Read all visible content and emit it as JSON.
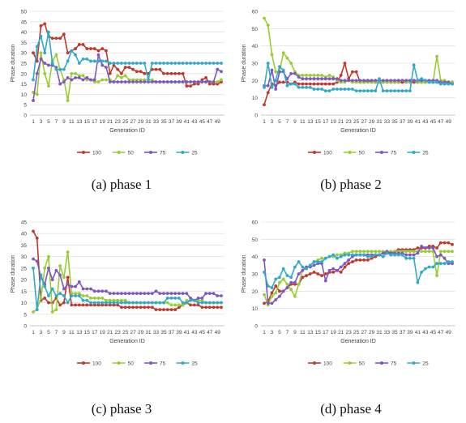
{
  "colors": {
    "100": "#c0392b",
    "50": "#9acd32",
    "75": "#7e57c2",
    "25": "#31a9c9"
  },
  "chart_data": [
    {
      "type": "line",
      "caption": "(a) phase 1",
      "ylabel": "Phase duration",
      "xlabel": "Generation ID",
      "ylim": [
        0,
        50
      ],
      "yticks": [
        0,
        5,
        10,
        15,
        20,
        25,
        30,
        35,
        40,
        45,
        50
      ],
      "x": [
        1,
        2,
        3,
        4,
        5,
        6,
        7,
        8,
        9,
        10,
        11,
        12,
        13,
        14,
        15,
        16,
        17,
        18,
        19,
        20,
        21,
        22,
        23,
        24,
        25,
        26,
        27,
        28,
        29,
        30,
        31,
        32,
        33,
        34,
        35,
        36,
        37,
        38,
        39,
        40,
        41,
        42,
        43,
        44,
        45,
        46,
        47,
        48,
        49,
        50
      ],
      "xticks": [
        1,
        3,
        5,
        7,
        9,
        11,
        13,
        15,
        17,
        19,
        21,
        23,
        25,
        27,
        29,
        31,
        33,
        35,
        37,
        39,
        41,
        43,
        45,
        47,
        49
      ],
      "legend": [
        "100",
        "50",
        "75",
        "25"
      ],
      "series": [
        {
          "name": "100",
          "values": [
            30,
            26,
            43,
            44,
            38,
            37,
            37,
            37,
            39,
            30,
            31,
            32,
            34,
            34,
            32,
            32,
            32,
            31,
            32,
            31,
            20,
            24,
            22,
            20,
            23,
            23,
            22,
            21,
            21,
            20,
            20,
            22,
            22,
            22,
            20,
            20,
            20,
            20,
            20,
            20,
            14,
            14,
            15,
            15,
            17,
            18,
            15,
            15,
            15,
            16
          ]
        },
        {
          "name": "50",
          "values": [
            11,
            10,
            30,
            20,
            14,
            26,
            29,
            22,
            17,
            7,
            20,
            20,
            19,
            19,
            17,
            17,
            16,
            16,
            17,
            17,
            17,
            16,
            19,
            18,
            19,
            17,
            17,
            17,
            17,
            17,
            17,
            17,
            16,
            16,
            16,
            16,
            16,
            16,
            16,
            16,
            16,
            16,
            16,
            16,
            16,
            16,
            16,
            16,
            16,
            17
          ]
        },
        {
          "name": "75",
          "values": [
            7,
            20,
            27,
            25,
            24,
            24,
            23,
            15,
            16,
            18,
            17,
            18,
            18,
            17,
            18,
            17,
            17,
            29,
            24,
            23,
            16,
            16,
            16,
            16,
            16,
            16,
            16,
            16,
            16,
            16,
            16,
            16,
            16,
            16,
            16,
            16,
            16,
            16,
            16,
            16,
            16,
            16,
            16,
            16,
            16,
            16,
            16,
            16,
            22,
            21
          ]
        },
        {
          "name": "25",
          "values": [
            17,
            33,
            38,
            30,
            40,
            25,
            22,
            22,
            22,
            26,
            31,
            29,
            25,
            27,
            27,
            26,
            26,
            26,
            26,
            26,
            25,
            25,
            25,
            25,
            25,
            25,
            25,
            25,
            25,
            25,
            17,
            25,
            25,
            25,
            25,
            25,
            25,
            25,
            25,
            25,
            25,
            25,
            25,
            25,
            25,
            25,
            25,
            25,
            25,
            25
          ]
        }
      ]
    },
    {
      "type": "line",
      "caption": "(b) phase 2",
      "ylabel": "Phase duration",
      "xlabel": "Generation ID",
      "ylim": [
        0,
        60
      ],
      "yticks": [
        0,
        10,
        20,
        30,
        40,
        50,
        60
      ],
      "x": [
        1,
        2,
        3,
        4,
        5,
        6,
        7,
        8,
        9,
        10,
        11,
        12,
        13,
        14,
        15,
        16,
        17,
        18,
        19,
        20,
        21,
        22,
        23,
        24,
        25,
        26,
        27,
        28,
        29,
        30,
        31,
        32,
        33,
        34,
        35,
        36,
        37,
        38,
        39,
        40,
        41,
        42,
        43,
        44,
        45,
        46,
        47,
        48,
        49,
        50
      ],
      "xticks": [
        1,
        3,
        5,
        7,
        9,
        11,
        13,
        15,
        17,
        19,
        21,
        23,
        25,
        27,
        29,
        31,
        33,
        35,
        37,
        39,
        41,
        43,
        45,
        47,
        49
      ],
      "legend": [
        "100",
        "50",
        "75",
        "25"
      ],
      "series": [
        {
          "name": "100",
          "values": [
            6,
            13,
            18,
            17,
            19,
            19,
            19,
            18,
            19,
            18,
            18,
            18,
            18,
            18,
            18,
            18,
            18,
            18,
            18,
            19,
            23,
            30,
            21,
            25,
            25,
            19,
            19,
            20,
            19,
            19,
            19,
            19,
            19,
            19,
            19,
            19,
            19,
            19,
            19,
            19,
            19,
            19,
            19,
            19,
            19,
            19,
            19,
            19,
            19,
            19
          ]
        },
        {
          "name": "50",
          "values": [
            56,
            52,
            35,
            25,
            25,
            36,
            33,
            30,
            25,
            23,
            23,
            23,
            23,
            23,
            23,
            23,
            22,
            23,
            22,
            20,
            19,
            19,
            20,
            19,
            19,
            19,
            19,
            19,
            19,
            19,
            19,
            19,
            19,
            19,
            19,
            19,
            20,
            19,
            19,
            20,
            19,
            19,
            19,
            19,
            19,
            34,
            20,
            20,
            19,
            19
          ]
        },
        {
          "name": "75",
          "values": [
            17,
            17,
            26,
            15,
            25,
            25,
            21,
            24,
            24,
            22,
            21,
            21,
            21,
            21,
            21,
            21,
            21,
            21,
            21,
            21,
            20,
            20,
            20,
            20,
            20,
            20,
            20,
            20,
            20,
            20,
            20,
            20,
            20,
            20,
            20,
            20,
            20,
            20,
            20,
            20,
            20,
            20,
            20,
            20,
            20,
            20,
            19,
            19,
            19,
            18
          ]
        },
        {
          "name": "25",
          "values": [
            16,
            30,
            16,
            20,
            28,
            26,
            17,
            18,
            18,
            16,
            16,
            16,
            16,
            15,
            15,
            15,
            14,
            14,
            15,
            15,
            15,
            15,
            15,
            15,
            14,
            14,
            14,
            14,
            14,
            14,
            21,
            14,
            14,
            14,
            14,
            14,
            14,
            14,
            14,
            29,
            20,
            21,
            20,
            19,
            19,
            19,
            18,
            18,
            18,
            18
          ]
        }
      ]
    },
    {
      "type": "line",
      "caption": "(c) phase 3",
      "ylabel": "Phase duration",
      "xlabel": "Generation ID",
      "ylim": [
        0,
        45
      ],
      "yticks": [
        0,
        5,
        10,
        15,
        20,
        25,
        30,
        35,
        40,
        45
      ],
      "x": [
        1,
        2,
        3,
        4,
        5,
        6,
        7,
        8,
        9,
        10,
        11,
        12,
        13,
        14,
        15,
        16,
        17,
        18,
        19,
        20,
        21,
        22,
        23,
        24,
        25,
        26,
        27,
        28,
        29,
        30,
        31,
        32,
        33,
        34,
        35,
        36,
        37,
        38,
        39,
        40,
        41,
        42,
        43,
        44,
        45,
        46,
        47,
        48,
        49,
        50
      ],
      "xticks": [
        1,
        3,
        5,
        7,
        9,
        11,
        13,
        15,
        17,
        19,
        21,
        23,
        25,
        27,
        29,
        31,
        33,
        35,
        37,
        39,
        41,
        43,
        45,
        47,
        49
      ],
      "legend": [
        "100",
        "50",
        "75",
        "25"
      ],
      "series": [
        {
          "name": "100",
          "values": [
            41,
            38,
            11,
            12,
            10,
            10,
            12,
            9,
            10,
            21,
            9,
            9,
            9,
            9,
            9,
            9,
            9,
            9,
            9,
            9,
            9,
            9,
            9,
            8,
            8,
            8,
            8,
            8,
            8,
            8,
            8,
            8,
            7,
            7,
            7,
            7,
            7,
            7,
            8,
            9,
            10,
            9,
            9,
            9,
            8,
            8,
            8,
            8,
            8,
            8
          ]
        },
        {
          "name": "50",
          "values": [
            6,
            7,
            12,
            25,
            30,
            6,
            7,
            26,
            21,
            32,
            14,
            14,
            14,
            13,
            13,
            12,
            12,
            12,
            12,
            11,
            11,
            11,
            11,
            11,
            11,
            10,
            10,
            10,
            10,
            10,
            10,
            10,
            10,
            10,
            10,
            10,
            9,
            9,
            9,
            9,
            11,
            11,
            11,
            11,
            11,
            10,
            10,
            10,
            10,
            10
          ]
        },
        {
          "name": "75",
          "values": [
            29,
            28,
            21,
            18,
            25,
            20,
            24,
            22,
            16,
            18,
            17,
            17,
            19,
            16,
            16,
            16,
            15,
            15,
            15,
            15,
            14,
            14,
            14,
            14,
            14,
            14,
            14,
            14,
            14,
            14,
            14,
            14,
            15,
            14,
            14,
            14,
            14,
            14,
            14,
            14,
            14,
            12,
            11,
            12,
            12,
            14,
            14,
            14,
            13,
            13
          ]
        },
        {
          "name": "25",
          "values": [
            25,
            7,
            22,
            17,
            13,
            16,
            13,
            14,
            13,
            10,
            13,
            13,
            13,
            11,
            11,
            10,
            10,
            10,
            10,
            10,
            10,
            10,
            10,
            10,
            10,
            10,
            10,
            10,
            10,
            10,
            10,
            10,
            10,
            10,
            10,
            12,
            12,
            12,
            12,
            10,
            10,
            11,
            11,
            10,
            10,
            10,
            10,
            10,
            10,
            10
          ]
        }
      ]
    },
    {
      "type": "line",
      "caption": "(d) phase 4",
      "ylabel": "Phase duration",
      "xlabel": "Generation ID",
      "ylim": [
        0,
        60
      ],
      "yticks": [
        0,
        10,
        20,
        30,
        40,
        50,
        60
      ],
      "x": [
        1,
        2,
        3,
        4,
        5,
        6,
        7,
        8,
        9,
        10,
        11,
        12,
        13,
        14,
        15,
        16,
        17,
        18,
        19,
        20,
        21,
        22,
        23,
        24,
        25,
        26,
        27,
        28,
        29,
        30,
        31,
        32,
        33,
        34,
        35,
        36,
        37,
        38,
        39,
        40,
        41,
        42,
        43,
        44,
        45,
        46,
        47,
        48,
        49,
        50
      ],
      "xticks": [
        1,
        3,
        5,
        7,
        9,
        11,
        13,
        15,
        17,
        19,
        21,
        23,
        25,
        27,
        29,
        31,
        33,
        35,
        37,
        39,
        41,
        43,
        45,
        47,
        49
      ],
      "legend": [
        "100",
        "50",
        "75",
        "25"
      ],
      "series": [
        {
          "name": "100",
          "values": [
            13,
            14,
            19,
            23,
            20,
            20,
            22,
            24,
            24,
            24,
            28,
            29,
            30,
            31,
            30,
            29,
            30,
            31,
            31,
            32,
            31,
            34,
            36,
            37,
            38,
            38,
            38,
            38,
            39,
            40,
            41,
            42,
            42,
            42,
            43,
            44,
            44,
            44,
            44,
            44,
            45,
            45,
            45,
            46,
            46,
            45,
            48,
            48,
            48,
            47
          ]
        },
        {
          "name": "50",
          "values": [
            18,
            12,
            17,
            19,
            25,
            27,
            24,
            21,
            17,
            24,
            32,
            34,
            35,
            37,
            38,
            39,
            39,
            40,
            40,
            41,
            41,
            42,
            42,
            43,
            43,
            43,
            43,
            43,
            43,
            43,
            43,
            43,
            43,
            43,
            43,
            43,
            43,
            43,
            43,
            43,
            43,
            43,
            43,
            43,
            43,
            29,
            43,
            43,
            43,
            43
          ]
        },
        {
          "name": "75",
          "values": [
            38,
            13,
            13,
            15,
            17,
            20,
            22,
            25,
            25,
            30,
            32,
            34,
            34,
            35,
            36,
            36,
            26,
            32,
            33,
            32,
            34,
            36,
            38,
            40,
            41,
            41,
            41,
            41,
            41,
            41,
            41,
            42,
            43,
            42,
            42,
            42,
            42,
            41,
            41,
            41,
            42,
            46,
            45,
            45,
            45,
            40,
            41,
            39,
            36,
            36
          ]
        },
        {
          "name": "25",
          "values": [
            31,
            23,
            22,
            27,
            28,
            33,
            29,
            28,
            34,
            37,
            34,
            33,
            35,
            37,
            37,
            37,
            39,
            40,
            41,
            39,
            40,
            41,
            41,
            41,
            41,
            41,
            41,
            40,
            40,
            41,
            41,
            40,
            42,
            41,
            41,
            41,
            41,
            39,
            39,
            39,
            25,
            31,
            33,
            34,
            34,
            36,
            36,
            36,
            37,
            37
          ]
        }
      ]
    }
  ]
}
